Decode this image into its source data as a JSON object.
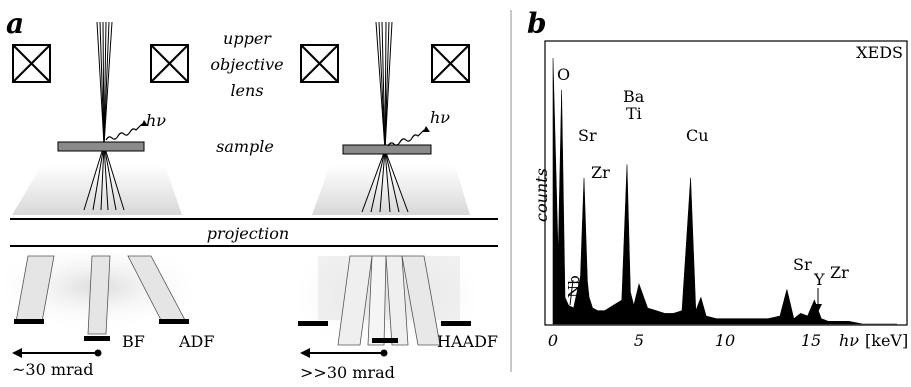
{
  "panel_a": {
    "label": "a",
    "lens_label_1": "upper",
    "lens_label_2": "objective",
    "lens_label_3": "lens",
    "sample_label": "sample",
    "photon_label_left": "hν",
    "photon_label_right": "hν",
    "projection_label": "projection",
    "det_bf": "BF",
    "det_adf": "ADF",
    "det_haadf": "HAADF",
    "angle_left": "~30 mrad",
    "angle_right": ">>30 mrad"
  },
  "panel_b": {
    "label": "b",
    "title": "XEDS",
    "ylabel": "counts",
    "xlabel_italic": "hν",
    "xlabel_unit": "[keV]",
    "peaks": {
      "o": "O",
      "nb": "Nb",
      "sr": "Sr",
      "zr": "Zr",
      "ba": "Ba",
      "ti": "Ti",
      "cu": "Cu",
      "sr2": "Sr",
      "y": "Y",
      "zr2": "Zr"
    }
  },
  "chart_data": {
    "type": "line",
    "title": "XEDS",
    "xlabel": "hν [keV]",
    "ylabel": "counts",
    "xlim": [
      0,
      20
    ],
    "xticks": [
      0,
      5,
      10,
      15
    ],
    "x": [
      0.0,
      0.3,
      0.5,
      0.7,
      0.9,
      1.2,
      1.6,
      1.8,
      2.0,
      2.1,
      2.3,
      2.6,
      3.0,
      3.5,
      4.0,
      4.3,
      4.5,
      4.7,
      5.0,
      5.5,
      6.0,
      6.5,
      7.0,
      7.5,
      8.0,
      8.3,
      8.6,
      8.9,
      9.5,
      10.5,
      11.5,
      12.5,
      13.2,
      13.6,
      14.0,
      14.4,
      14.8,
      15.2,
      15.6,
      16.0,
      16.3,
      16.7,
      17.2,
      18.0,
      19.0,
      20.0
    ],
    "y": [
      1.0,
      0.25,
      0.88,
      0.1,
      0.07,
      0.06,
      0.18,
      0.55,
      0.16,
      0.1,
      0.06,
      0.05,
      0.05,
      0.07,
      0.09,
      0.6,
      0.12,
      0.07,
      0.15,
      0.06,
      0.05,
      0.04,
      0.04,
      0.05,
      0.55,
      0.05,
      0.1,
      0.03,
      0.02,
      0.02,
      0.02,
      0.02,
      0.03,
      0.13,
      0.02,
      0.04,
      0.03,
      0.09,
      0.02,
      0.01,
      0.01,
      0.01,
      0.01,
      0.0,
      0.0,
      0.0
    ]
  }
}
